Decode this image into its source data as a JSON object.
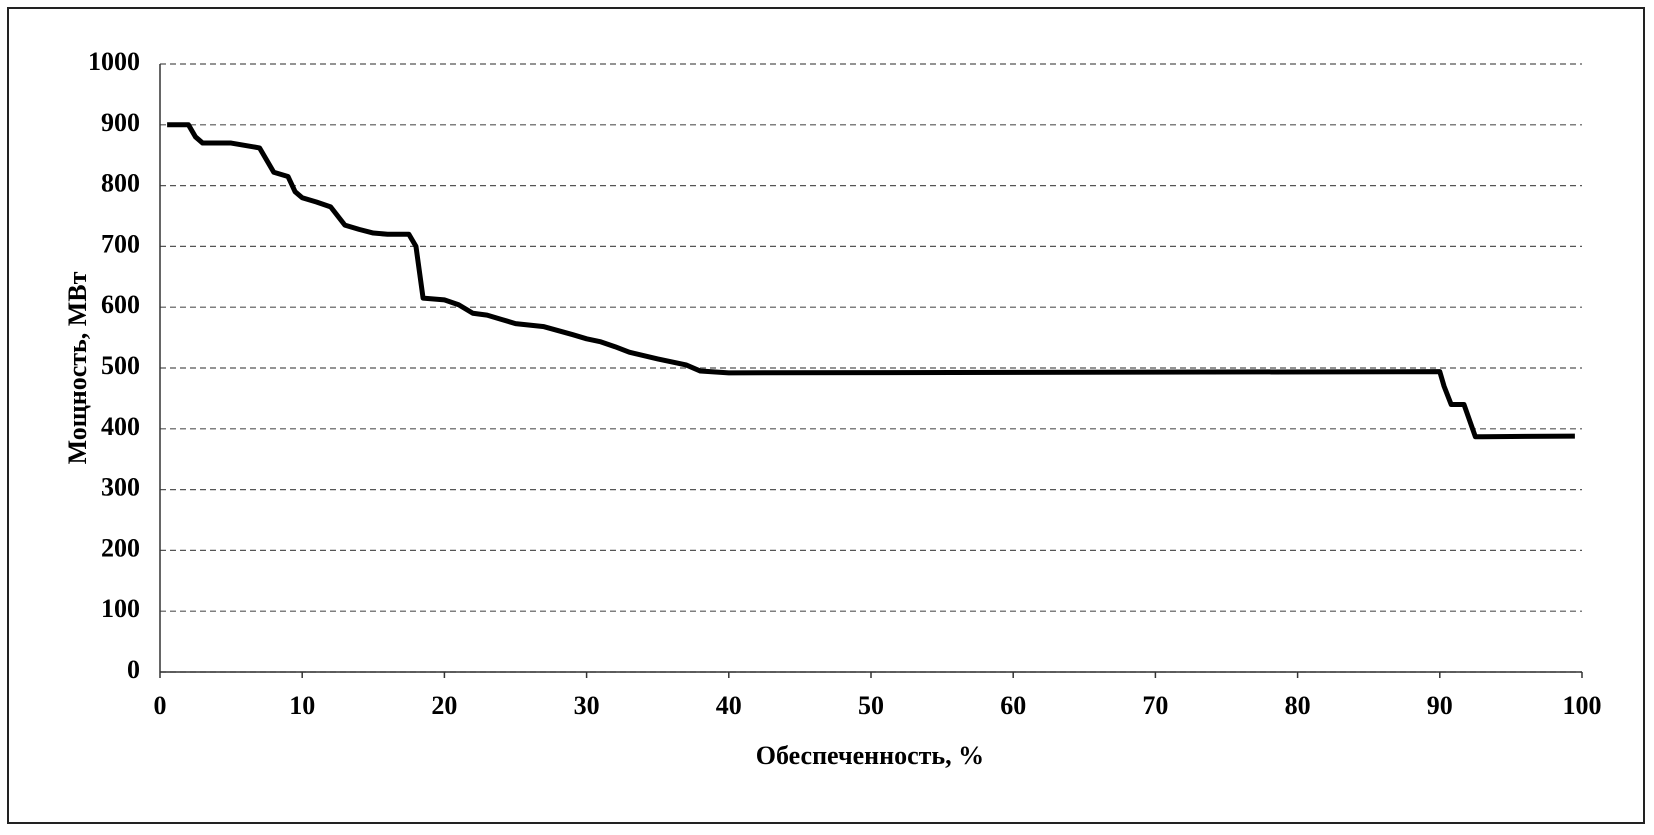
{
  "chart_data": {
    "type": "line",
    "x_label": "Обеспеченность, %",
    "y_label": "Мощность, МВт",
    "grid": true,
    "xlim": [
      0,
      100
    ],
    "xticks": [
      0,
      10,
      20,
      30,
      40,
      50,
      60,
      70,
      80,
      90,
      100
    ],
    "ylim": [
      0,
      1000
    ],
    "yticks": [
      0,
      100,
      200,
      300,
      400,
      500,
      600,
      700,
      800,
      900,
      1000
    ],
    "series": [
      {
        "color": "#000000",
        "x": [
          0.5,
          2,
          2.5,
          3,
          5,
          7,
          8,
          9,
          9.5,
          10,
          11,
          12,
          13,
          14,
          15,
          16,
          17.5,
          18,
          18.5,
          20,
          21,
          22,
          23,
          24,
          25,
          27,
          29,
          30,
          31,
          32,
          33,
          35,
          37,
          38,
          40,
          90,
          90.3,
          90.8,
          91.7,
          92.5,
          93,
          99.5
        ],
        "values": [
          900,
          900,
          880,
          870,
          870,
          862,
          822,
          815,
          790,
          780,
          773,
          765,
          735,
          728,
          722,
          720,
          720,
          700,
          615,
          612,
          604,
          590,
          587,
          580,
          573,
          568,
          555,
          548,
          543,
          535,
          526,
          515,
          505,
          495,
          492,
          494,
          470,
          440,
          440,
          387,
          387,
          388
        ]
      }
    ]
  }
}
